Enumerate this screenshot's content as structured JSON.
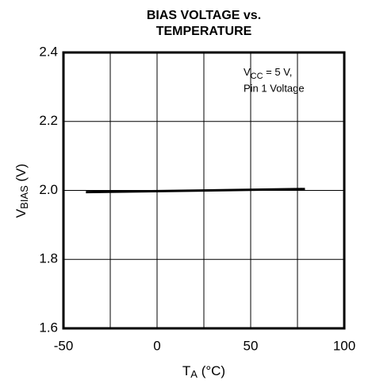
{
  "chart_data": {
    "type": "line",
    "title": [
      "BIAS VOLTAGE vs.",
      "TEMPERATURE"
    ],
    "x_label": {
      "main": "T",
      "subscript": "A",
      "suffix": " (°C)"
    },
    "y_label": {
      "main": "V",
      "subscript": "BIAS",
      "suffix": " (V)"
    },
    "annotation": [
      {
        "main": "V",
        "subscript": "CC",
        "suffix": " = 5 V,"
      },
      {
        "main": "Pin 1 Voltage"
      }
    ],
    "x": [
      -38,
      79
    ],
    "series": [
      {
        "name": "Pin 1 Voltage",
        "color": "#000000",
        "values": [
          1.995,
          2.004
        ]
      }
    ],
    "xlim": [
      -50,
      100
    ],
    "xticks": [
      -50,
      0,
      50,
      100
    ],
    "x_minor_ticks": [
      -25,
      25,
      75
    ],
    "ylim": [
      1.6,
      2.4
    ],
    "yticks": [
      1.6,
      1.8,
      {
        "value": 2,
        "label": "2.0"
      },
      2.2,
      2.4
    ],
    "grid": true
  }
}
